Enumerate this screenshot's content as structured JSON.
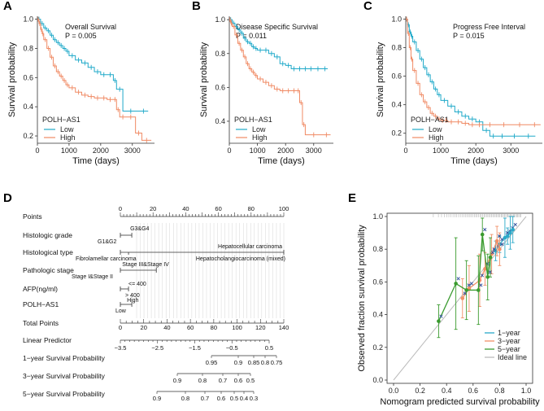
{
  "colors": {
    "low": "#1fa9c9",
    "high": "#f08a64",
    "y1": "#2aa9c9",
    "y3": "#f29068",
    "y5": "#3a9b2f",
    "ideal": "#bbbbbb",
    "cross": "#2c4c9a"
  },
  "chart_data": [
    {
      "type": "line",
      "panel": "A",
      "title": "Overall Survival",
      "pvalue": "P = 0.005",
      "xlabel": "Time (days)",
      "ylabel": "Survival probability",
      "xlim": [
        0,
        3700
      ],
      "ylim": [
        0.15,
        1.02
      ],
      "xticks": [
        "0",
        "1000",
        "2000",
        "3000"
      ],
      "yticks": [
        "0.2",
        "0.4",
        "0.6",
        "0.8",
        "1.0"
      ],
      "legend_title": "POLH−AS1",
      "series": [
        {
          "name": "Low",
          "x": [
            0,
            100,
            200,
            300,
            400,
            500,
            600,
            700,
            800,
            900,
            1000,
            1200,
            1400,
            1600,
            1800,
            2000,
            2200,
            2400,
            2500,
            2700,
            3200,
            3500
          ],
          "y": [
            1.0,
            0.97,
            0.94,
            0.92,
            0.89,
            0.86,
            0.84,
            0.82,
            0.8,
            0.78,
            0.75,
            0.72,
            0.7,
            0.67,
            0.64,
            0.62,
            0.62,
            0.58,
            0.52,
            0.37,
            0.37,
            0.37
          ]
        },
        {
          "name": "High",
          "x": [
            0,
            50,
            100,
            150,
            200,
            300,
            400,
            500,
            600,
            700,
            800,
            900,
            1000,
            1200,
            1400,
            1600,
            1800,
            2000,
            2200,
            2400,
            2500,
            2600,
            2800,
            3100,
            3300,
            3600
          ],
          "y": [
            1.0,
            0.97,
            0.93,
            0.9,
            0.86,
            0.8,
            0.74,
            0.68,
            0.64,
            0.61,
            0.58,
            0.55,
            0.53,
            0.5,
            0.48,
            0.47,
            0.46,
            0.46,
            0.45,
            0.45,
            0.38,
            0.33,
            0.33,
            0.22,
            0.17,
            0.17
          ]
        }
      ]
    },
    {
      "type": "line",
      "panel": "B",
      "title": "Disease Specific Survival",
      "pvalue": "P = 0.011",
      "xlabel": "Time (days)",
      "ylabel": "Survival probability",
      "xlim": [
        0,
        3700
      ],
      "ylim": [
        0.27,
        1.02
      ],
      "xticks": [
        "0",
        "1000",
        "2000",
        "3000"
      ],
      "yticks": [
        "0.4",
        "0.6",
        "0.8",
        "1.0"
      ],
      "legend_title": "POLH−AS1",
      "series": [
        {
          "name": "Low",
          "x": [
            0,
            100,
            200,
            300,
            400,
            500,
            600,
            700,
            800,
            900,
            1000,
            1200,
            1400,
            1600,
            1800,
            2000,
            2200,
            2400,
            2600,
            2800,
            3000,
            3300,
            3500
          ],
          "y": [
            1.0,
            0.98,
            0.96,
            0.94,
            0.92,
            0.89,
            0.87,
            0.86,
            0.84,
            0.83,
            0.82,
            0.82,
            0.8,
            0.78,
            0.74,
            0.73,
            0.71,
            0.71,
            0.71,
            0.71,
            0.71,
            0.71,
            0.71
          ]
        },
        {
          "name": "High",
          "x": [
            0,
            50,
            100,
            200,
            300,
            400,
            500,
            600,
            700,
            800,
            900,
            1000,
            1200,
            1400,
            1600,
            1800,
            2000,
            2200,
            2400,
            2500,
            2600,
            2700,
            3300,
            3600
          ],
          "y": [
            1.0,
            0.98,
            0.96,
            0.91,
            0.86,
            0.82,
            0.78,
            0.74,
            0.71,
            0.69,
            0.67,
            0.65,
            0.63,
            0.61,
            0.59,
            0.58,
            0.58,
            0.58,
            0.58,
            0.51,
            0.38,
            0.32,
            0.32,
            0.32
          ]
        }
      ]
    },
    {
      "type": "line",
      "panel": "C",
      "title": "Progress Free Interval",
      "pvalue": "P = 0.015",
      "xlabel": "Time (days)",
      "ylabel": "Survival probability",
      "xlim": [
        0,
        3900
      ],
      "ylim": [
        0.13,
        1.02
      ],
      "xticks": [
        "0",
        "1000",
        "2000",
        "3000"
      ],
      "yticks": [
        "0.2",
        "0.4",
        "0.6",
        "0.8",
        "1.0"
      ],
      "legend_title": "POLH−AS1",
      "series": [
        {
          "name": "Low",
          "x": [
            0,
            50,
            100,
            150,
            200,
            300,
            400,
            500,
            600,
            700,
            800,
            900,
            1000,
            1200,
            1400,
            1600,
            1800,
            2000,
            2200,
            2400,
            2600,
            2900,
            3300,
            3700
          ],
          "y": [
            1.0,
            0.96,
            0.91,
            0.88,
            0.84,
            0.78,
            0.72,
            0.66,
            0.61,
            0.56,
            0.51,
            0.47,
            0.43,
            0.39,
            0.35,
            0.32,
            0.3,
            0.28,
            0.22,
            0.18,
            0.18,
            0.18,
            0.18,
            0.18
          ]
        },
        {
          "name": "High",
          "x": [
            0,
            50,
            100,
            150,
            200,
            300,
            400,
            500,
            600,
            700,
            800,
            900,
            1000,
            1100,
            1200,
            1400,
            1600,
            1800,
            2000,
            2200,
            2600,
            3000,
            3500,
            3850
          ],
          "y": [
            1.0,
            0.9,
            0.8,
            0.72,
            0.64,
            0.55,
            0.47,
            0.42,
            0.38,
            0.34,
            0.32,
            0.3,
            0.29,
            0.29,
            0.28,
            0.28,
            0.27,
            0.26,
            0.26,
            0.26,
            0.26,
            0.26,
            0.26,
            0.26
          ]
        }
      ]
    },
    {
      "type": "line",
      "panel": "E",
      "xlabel": "Nomogram predicted survival probability",
      "ylabel": "Observed fraction survival probability",
      "xlim": [
        0,
        1
      ],
      "ylim": [
        0,
        1
      ],
      "xticks": [
        "0.0",
        "0.2",
        "0.4",
        "0.6",
        "0.8",
        "1.0"
      ],
      "yticks": [
        "0.0",
        "0.2",
        "0.4",
        "0.6",
        "0.8",
        "1.0"
      ],
      "legend": [
        "1−year",
        "3−year",
        "5−year",
        "Ideal line"
      ],
      "series": [
        {
          "name": "1-year",
          "x": [
            0.77,
            0.8,
            0.84,
            0.86,
            0.88,
            0.9
          ],
          "y": [
            0.79,
            0.83,
            0.87,
            0.88,
            0.9,
            0.92
          ],
          "err": [
            0.06,
            0.05,
            0.12,
            0.05,
            0.1,
            0.08
          ]
        },
        {
          "name": "3-year",
          "x": [
            0.52,
            0.57,
            0.65,
            0.69,
            0.74,
            0.78,
            0.8
          ],
          "y": [
            0.5,
            0.56,
            0.61,
            0.68,
            0.77,
            0.85,
            0.8
          ],
          "err": [
            0.12,
            0.14,
            0.16,
            0.1,
            0.12,
            0.09,
            0.1
          ]
        },
        {
          "name": "5-year",
          "x": [
            0.34,
            0.47,
            0.55,
            0.64,
            0.67,
            0.71,
            0.73
          ],
          "y": [
            0.36,
            0.59,
            0.55,
            0.55,
            0.89,
            0.63,
            0.75
          ],
          "err": [
            0.1,
            0.28,
            0.18,
            0.21,
            0.1,
            0.14,
            0.12
          ]
        }
      ]
    }
  ],
  "nomogram": {
    "panel": "D",
    "rows": [
      "Points",
      "Histologic grade",
      "Histological type",
      "Pathologic stage",
      "AFP(ng/ml)",
      "POLH−AS1",
      "Total Points",
      "Linear Predictor",
      "1−year Survival Probability",
      "3−year Survival Probability",
      "5−year Survival Probability"
    ],
    "points_ticks": [
      "0",
      "20",
      "40",
      "60",
      "80",
      "100"
    ],
    "total_ticks": [
      "0",
      "20",
      "40",
      "60",
      "80",
      "100",
      "120",
      "140"
    ],
    "lp_ticks": [
      "−3.5",
      "−2.5",
      "−1.5",
      "−0.5",
      "0.5"
    ],
    "surv1": [
      "0.95",
      "0.9",
      "0.85",
      "0.8",
      "0.75"
    ],
    "surv3": [
      "0.9",
      "0.8",
      "0.7",
      "0.6",
      "0.5"
    ],
    "surv5": [
      "0.9",
      "0.8",
      "0.7",
      "0.6",
      "0.5",
      "0.4",
      "0.3"
    ],
    "grade_labels": [
      "G3&G4",
      "G1&G2"
    ],
    "type_labels": [
      "Hepatocellular carcinoma",
      "Fibrolamellar carcinoma",
      "Hepatocholangiocarcinoma (mixed)"
    ],
    "stage_labels": [
      "Stage III&Stage IV",
      "Stage I&Stage II"
    ],
    "afp_labels": [
      "<= 400",
      "> 400"
    ],
    "polh_labels": [
      "High",
      "Low"
    ]
  }
}
